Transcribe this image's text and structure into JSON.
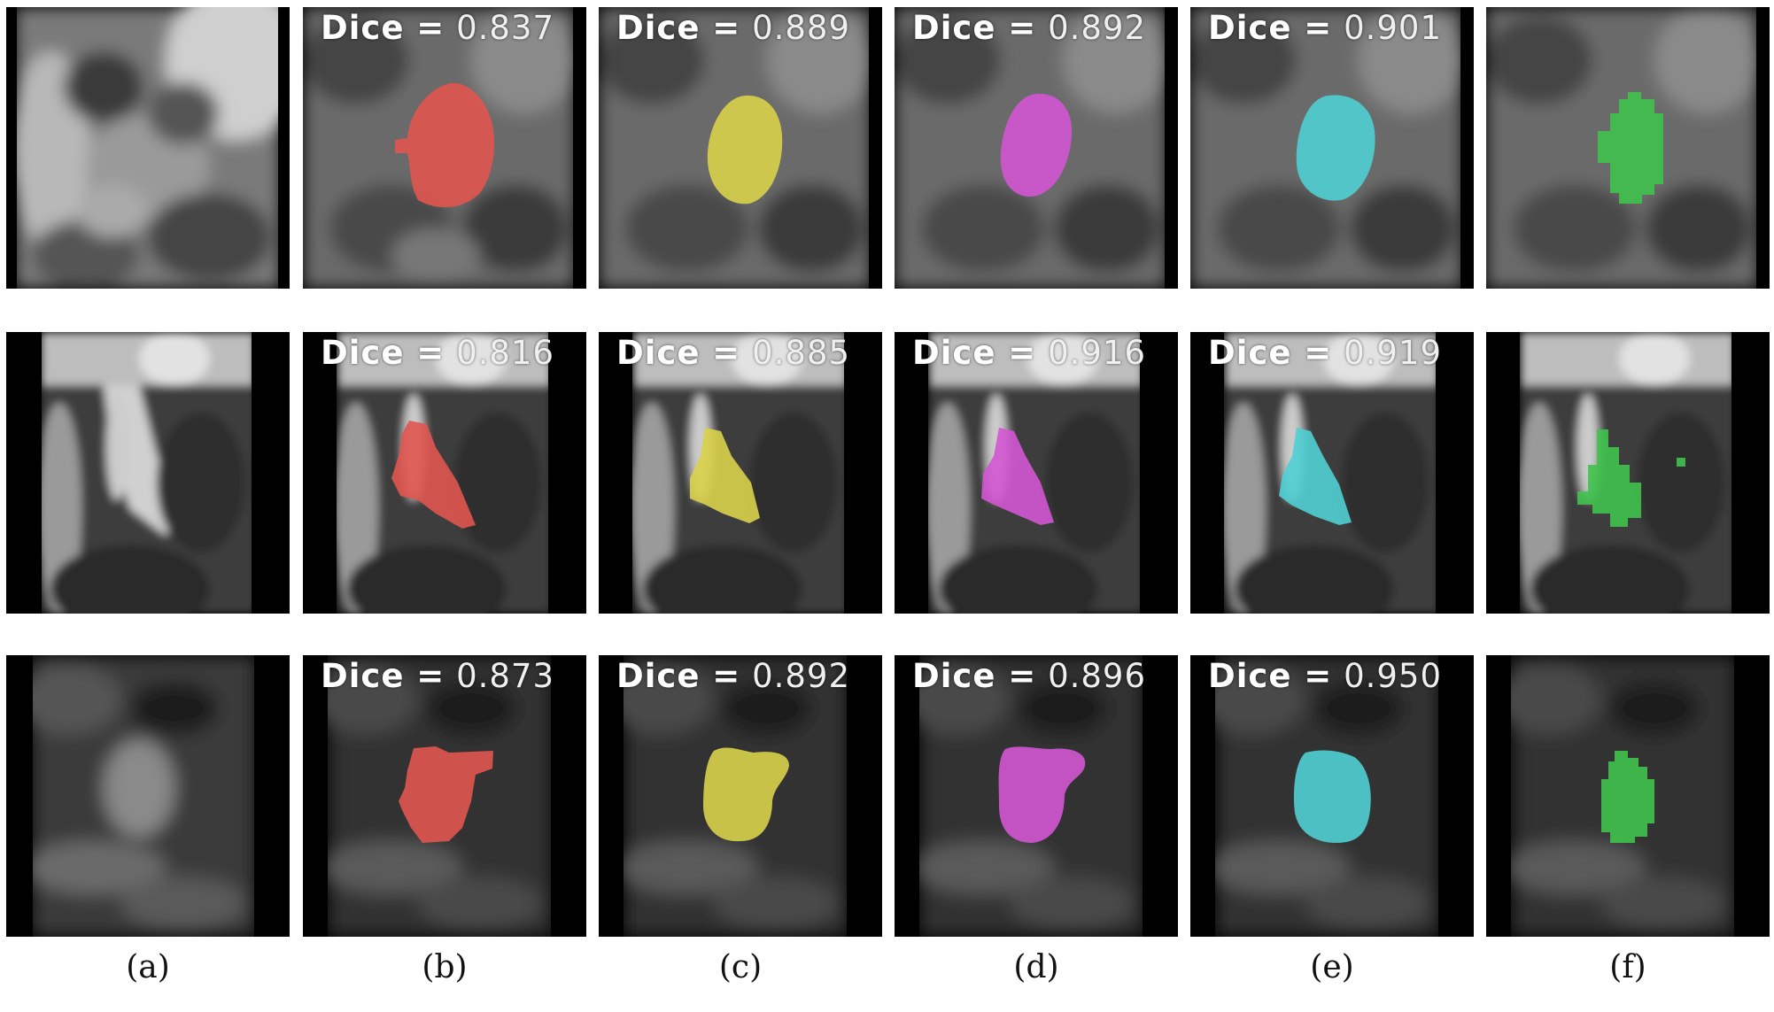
{
  "figure": {
    "captions": [
      "(a)",
      "(b)",
      "(c)",
      "(d)",
      "(e)",
      "(f)"
    ],
    "methods": [
      {
        "key": "b",
        "overlay_color": "#e05550"
      },
      {
        "key": "c",
        "overlay_color": "#d9d24a"
      },
      {
        "key": "d",
        "overlay_color": "#d357d3"
      },
      {
        "key": "e",
        "overlay_color": "#4fcfd2"
      },
      {
        "key": "f",
        "overlay_color": "#3fc24c"
      }
    ],
    "dice_label": "Dice =",
    "rows": [
      {
        "dice": [
          "0.837",
          "0.889",
          "0.892",
          "0.901"
        ]
      },
      {
        "dice": [
          "0.816",
          "0.885",
          "0.916",
          "0.919"
        ]
      },
      {
        "dice": [
          "0.873",
          "0.892",
          "0.896",
          "0.950"
        ]
      }
    ]
  }
}
